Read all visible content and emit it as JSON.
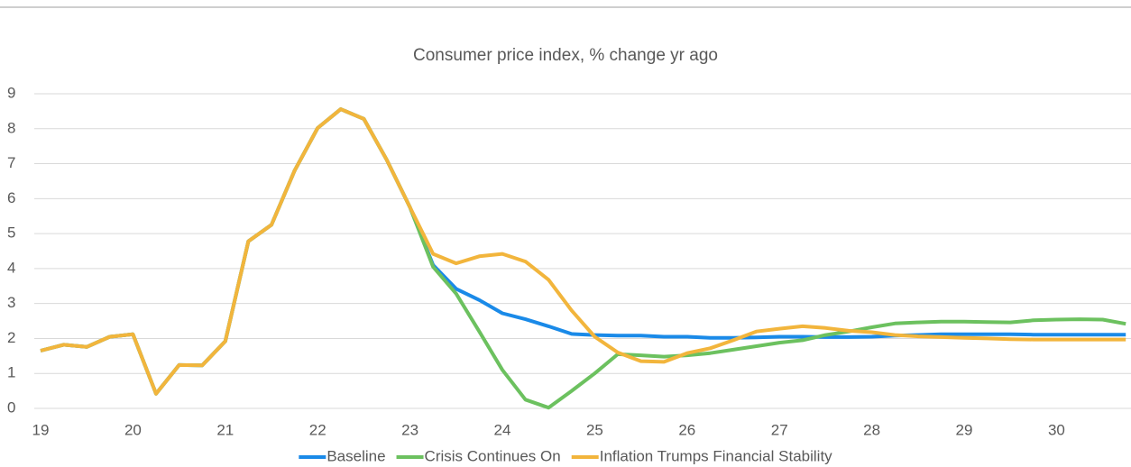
{
  "chart_data": {
    "type": "line",
    "title": "Consumer price index, % change yr ago",
    "categories": [
      "19",
      null,
      null,
      null,
      "20",
      null,
      null,
      null,
      "21",
      null,
      null,
      null,
      "22",
      null,
      null,
      null,
      "23",
      null,
      null,
      null,
      "24",
      null,
      null,
      null,
      "25",
      null,
      null,
      null,
      "26",
      null,
      null,
      null,
      "27",
      null,
      null,
      null,
      "28",
      null,
      null,
      null,
      "29",
      null,
      null,
      null,
      "30",
      null,
      null,
      null
    ],
    "series": [
      {
        "name": "Baseline",
        "color": "#1a8ae8",
        "values": [
          1.65,
          1.82,
          1.76,
          2.05,
          2.12,
          0.42,
          1.24,
          1.23,
          1.92,
          4.78,
          5.25,
          6.8,
          8.02,
          8.56,
          8.28,
          7.1,
          5.75,
          4.1,
          3.42,
          3.1,
          2.72,
          2.55,
          2.35,
          2.13,
          2.1,
          2.08,
          2.08,
          2.05,
          2.05,
          2.02,
          2.02,
          2.03,
          2.05,
          2.05,
          2.04,
          2.04,
          2.05,
          2.08,
          2.1,
          2.12,
          2.12,
          2.12,
          2.12,
          2.11,
          2.11,
          2.11,
          2.11,
          2.11
        ]
      },
      {
        "name": "Crisis Continues On",
        "color": "#6cc15f",
        "values": [
          1.65,
          1.82,
          1.76,
          2.05,
          2.12,
          0.42,
          1.24,
          1.23,
          1.92,
          4.78,
          5.25,
          6.8,
          8.02,
          8.56,
          8.28,
          7.1,
          5.75,
          4.05,
          3.28,
          2.2,
          1.1,
          0.25,
          0.02,
          0.5,
          1.0,
          1.55,
          1.52,
          1.48,
          1.52,
          1.58,
          1.68,
          1.78,
          1.88,
          1.95,
          2.1,
          2.2,
          2.32,
          2.43,
          2.46,
          2.48,
          2.48,
          2.47,
          2.46,
          2.52,
          2.54,
          2.55,
          2.54,
          2.42
        ]
      },
      {
        "name": "Inflation Trumps Financial Stability",
        "color": "#f2b53c",
        "values": [
          1.65,
          1.82,
          1.76,
          2.05,
          2.12,
          0.42,
          1.24,
          1.23,
          1.92,
          4.78,
          5.25,
          6.8,
          8.02,
          8.56,
          8.28,
          7.1,
          5.75,
          4.42,
          4.15,
          4.35,
          4.42,
          4.2,
          3.68,
          2.8,
          2.05,
          1.6,
          1.35,
          1.33,
          1.58,
          1.72,
          1.95,
          2.2,
          2.28,
          2.35,
          2.3,
          2.22,
          2.18,
          2.1,
          2.06,
          2.04,
          2.02,
          2.0,
          1.98,
          1.97,
          1.97,
          1.97,
          1.97,
          1.97
        ]
      }
    ],
    "ylim": [
      0,
      9
    ],
    "yticks": [
      0,
      1,
      2,
      3,
      4,
      5,
      6,
      7,
      8,
      9
    ],
    "grid": true,
    "legend": "bottom"
  }
}
